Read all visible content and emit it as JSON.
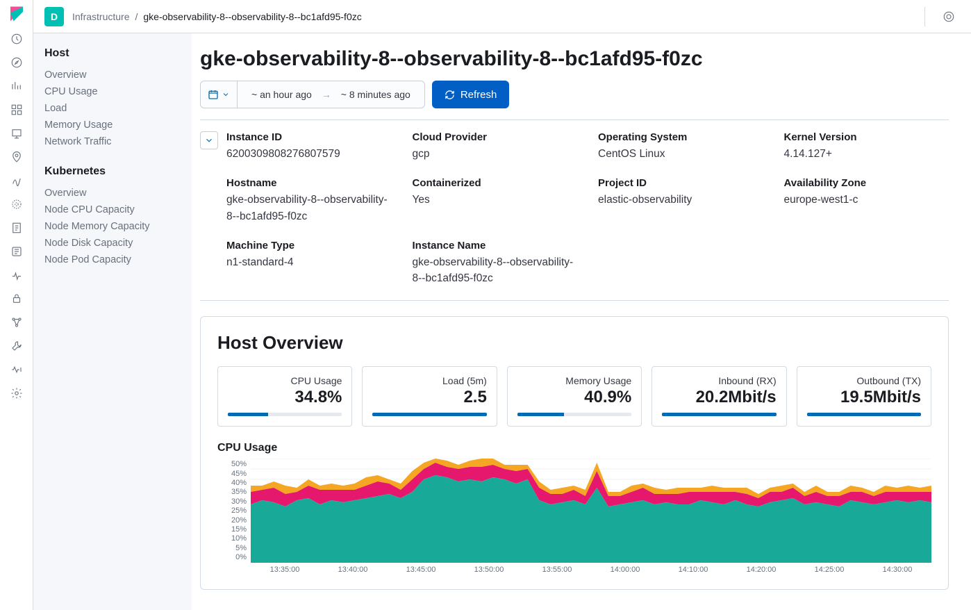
{
  "breadcrumb": {
    "root": "Infrastructure",
    "current": "gke-observability-8--observability-8--bc1afd95-f0zc"
  },
  "space_letter": "D",
  "page_title": "gke-observability-8--observability-8--bc1afd95-f0zc",
  "timepicker": {
    "from": "~ an hour ago",
    "arrow": "→",
    "to": "~ 8 minutes ago"
  },
  "refresh_label": "Refresh",
  "sidenav": {
    "host_title": "Host",
    "host_items": [
      "Overview",
      "CPU Usage",
      "Load",
      "Memory Usage",
      "Network Traffic"
    ],
    "k8s_title": "Kubernetes",
    "k8s_items": [
      "Overview",
      "Node CPU Capacity",
      "Node Memory Capacity",
      "Node Disk Capacity",
      "Node Pod Capacity"
    ]
  },
  "meta": [
    {
      "label": "Instance ID",
      "value": "6200309808276807579"
    },
    {
      "label": "Cloud Provider",
      "value": "gcp"
    },
    {
      "label": "Operating System",
      "value": "CentOS Linux"
    },
    {
      "label": "Kernel Version",
      "value": "4.14.127+"
    },
    {
      "label": "Hostname",
      "value": "gke-observability-8--observability-8--bc1afd95-f0zc"
    },
    {
      "label": "Containerized",
      "value": "Yes"
    },
    {
      "label": "Project ID",
      "value": "elastic-observability"
    },
    {
      "label": "Availability Zone",
      "value": "europe-west1-c"
    },
    {
      "label": "Machine Type",
      "value": "n1-standard-4"
    },
    {
      "label": "Instance Name",
      "value": "gke-observability-8--observability-8--bc1afd95-f0zc"
    }
  ],
  "overview_title": "Host Overview",
  "stats": [
    {
      "label": "CPU Usage",
      "value": "34.8%",
      "pct": 35
    },
    {
      "label": "Load (5m)",
      "value": "2.5",
      "pct": 100
    },
    {
      "label": "Memory Usage",
      "value": "40.9%",
      "pct": 41
    },
    {
      "label": "Inbound (RX)",
      "value": "20.2Mbit/s",
      "pct": 100
    },
    {
      "label": "Outbound (TX)",
      "value": "19.5Mbit/s",
      "pct": 100
    }
  ],
  "cpu_chart": {
    "title": "CPU Usage",
    "type": "stacked-area",
    "y_ticks": [
      "50%",
      "45%",
      "40%",
      "35%",
      "30%",
      "25%",
      "20%",
      "15%",
      "10%",
      "5%",
      "0%"
    ],
    "ylim": [
      0,
      50
    ],
    "x_ticks": [
      "13:35:00",
      "13:40:00",
      "13:45:00",
      "13:50:00",
      "13:55:00",
      "14:00:00",
      "14:10:00",
      "14:20:00",
      "14:25:00",
      "14:30:00"
    ],
    "colors": {
      "series_a": "#18a999",
      "series_b": "#e6186d",
      "series_c": "#f5a623",
      "grid": "#eef0f4",
      "axis_text": "#69707d"
    },
    "series_a": [
      28,
      30,
      29,
      27,
      30,
      31,
      28,
      30,
      29,
      30,
      31,
      32,
      33,
      31,
      34,
      40,
      42,
      41,
      39,
      40,
      39,
      41,
      40,
      38,
      40,
      30,
      28,
      29,
      30,
      28,
      36,
      27,
      28,
      29,
      30,
      28,
      29,
      28,
      28,
      30,
      29,
      28,
      30,
      28,
      27,
      29,
      30,
      31,
      28,
      29,
      28,
      27,
      30,
      29,
      28,
      29,
      30,
      29,
      30,
      29
    ],
    "series_b": [
      6,
      5,
      7,
      6,
      4,
      6,
      7,
      5,
      6,
      5,
      6,
      7,
      5,
      4,
      6,
      5,
      6,
      5,
      6,
      6,
      7,
      6,
      5,
      6,
      5,
      6,
      5,
      4,
      5,
      4,
      8,
      5,
      4,
      5,
      6,
      5,
      4,
      5,
      6,
      4,
      5,
      6,
      4,
      5,
      4,
      5,
      4,
      5,
      4,
      5,
      4,
      5,
      4,
      5,
      4,
      5,
      4,
      5,
      4,
      5
    ],
    "series_c": [
      3,
      2,
      3,
      4,
      2,
      3,
      2,
      3,
      2,
      3,
      4,
      3,
      2,
      3,
      4,
      3,
      2,
      3,
      2,
      3,
      4,
      3,
      2,
      3,
      2,
      3,
      2,
      3,
      2,
      3,
      4,
      2,
      2,
      3,
      2,
      3,
      2,
      3,
      2,
      2,
      3,
      2,
      2,
      3,
      2,
      2,
      3,
      2,
      2,
      3,
      2,
      2,
      3,
      2,
      2,
      3,
      2,
      3,
      2,
      3
    ]
  }
}
